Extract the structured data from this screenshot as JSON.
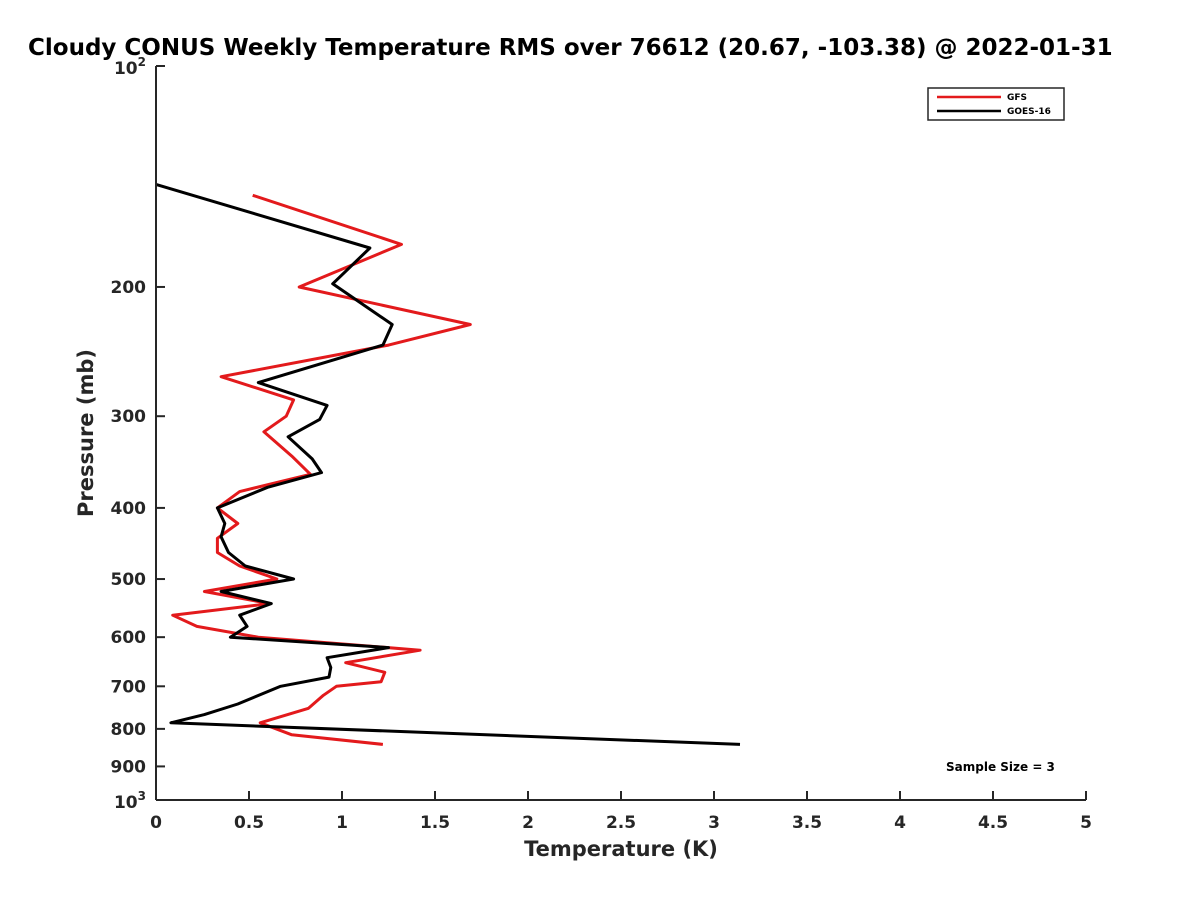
{
  "chart_data": {
    "type": "line",
    "title": "Cloudy CONUS Weekly Temperature RMS over 76612 (20.67, -103.38) @ 2022-01-31",
    "xlabel": "Temperature (K)",
    "ylabel": "Pressure (mb)",
    "xlim": [
      0,
      5
    ],
    "ylim": [
      100,
      1000
    ],
    "yscale": "log",
    "y_reversed": true,
    "x_ticks": [
      0,
      0.5,
      1,
      1.5,
      2,
      2.5,
      3,
      3.5,
      4,
      4.5,
      5
    ],
    "x_tick_labels": [
      "0",
      "0.5",
      "1",
      "1.5",
      "2",
      "2.5",
      "3",
      "3.5",
      "4",
      "4.5",
      "5"
    ],
    "y_ticks": [
      200,
      300,
      400,
      500,
      600,
      700,
      800,
      900
    ],
    "y_tick_labels": [
      "200",
      "300",
      "400",
      "500",
      "600",
      "700",
      "800",
      "900"
    ],
    "y_decade_ticks": [
      {
        "value": 100,
        "base": "10",
        "exp": "2"
      },
      {
        "value": 1000,
        "base": "10",
        "exp": "3"
      }
    ],
    "legend": {
      "placement": "top-right",
      "entries": [
        "GFS",
        "GOES-16"
      ]
    },
    "grid": false,
    "annotation": "Sample Size = 3",
    "series": [
      {
        "name": "GFS",
        "color": "#e31a1c",
        "points": [
          [
            0.52,
            150
          ],
          [
            1.32,
            175
          ],
          [
            0.77,
            200
          ],
          [
            1.69,
            225
          ],
          [
            1.25,
            240
          ],
          [
            0.35,
            265
          ],
          [
            0.74,
            285
          ],
          [
            0.7,
            300
          ],
          [
            0.58,
            315
          ],
          [
            0.73,
            340
          ],
          [
            0.83,
            360
          ],
          [
            0.45,
            380
          ],
          [
            0.33,
            400
          ],
          [
            0.44,
            420
          ],
          [
            0.33,
            440
          ],
          [
            0.33,
            460
          ],
          [
            0.45,
            480
          ],
          [
            0.65,
            500
          ],
          [
            0.26,
            520
          ],
          [
            0.61,
            540
          ],
          [
            0.09,
            560
          ],
          [
            0.22,
            580
          ],
          [
            0.55,
            600
          ],
          [
            1.42,
            625
          ],
          [
            1.02,
            650
          ],
          [
            1.23,
            670
          ],
          [
            1.21,
            690
          ],
          [
            0.97,
            700
          ],
          [
            0.9,
            720
          ],
          [
            0.82,
            750
          ],
          [
            0.56,
            785
          ],
          [
            0.73,
            815
          ],
          [
            1.22,
            840
          ]
        ]
      },
      {
        "name": "GOES-16",
        "color": "#000000",
        "points": [
          [
            0.0,
            145
          ],
          [
            1.15,
            177
          ],
          [
            0.95,
            198
          ],
          [
            1.27,
            225
          ],
          [
            1.22,
            240
          ],
          [
            0.55,
            270
          ],
          [
            0.92,
            290
          ],
          [
            0.88,
            303
          ],
          [
            0.71,
            320
          ],
          [
            0.84,
            343
          ],
          [
            0.89,
            358
          ],
          [
            0.6,
            375
          ],
          [
            0.33,
            400
          ],
          [
            0.37,
            420
          ],
          [
            0.35,
            438
          ],
          [
            0.39,
            460
          ],
          [
            0.48,
            480
          ],
          [
            0.74,
            500
          ],
          [
            0.35,
            520
          ],
          [
            0.62,
            540
          ],
          [
            0.45,
            560
          ],
          [
            0.49,
            580
          ],
          [
            0.4,
            600
          ],
          [
            1.25,
            620
          ],
          [
            0.92,
            640
          ],
          [
            0.94,
            660
          ],
          [
            0.93,
            680
          ],
          [
            0.67,
            700
          ],
          [
            0.44,
            740
          ],
          [
            0.26,
            765
          ],
          [
            0.08,
            785
          ],
          [
            3.14,
            840
          ]
        ]
      }
    ]
  }
}
